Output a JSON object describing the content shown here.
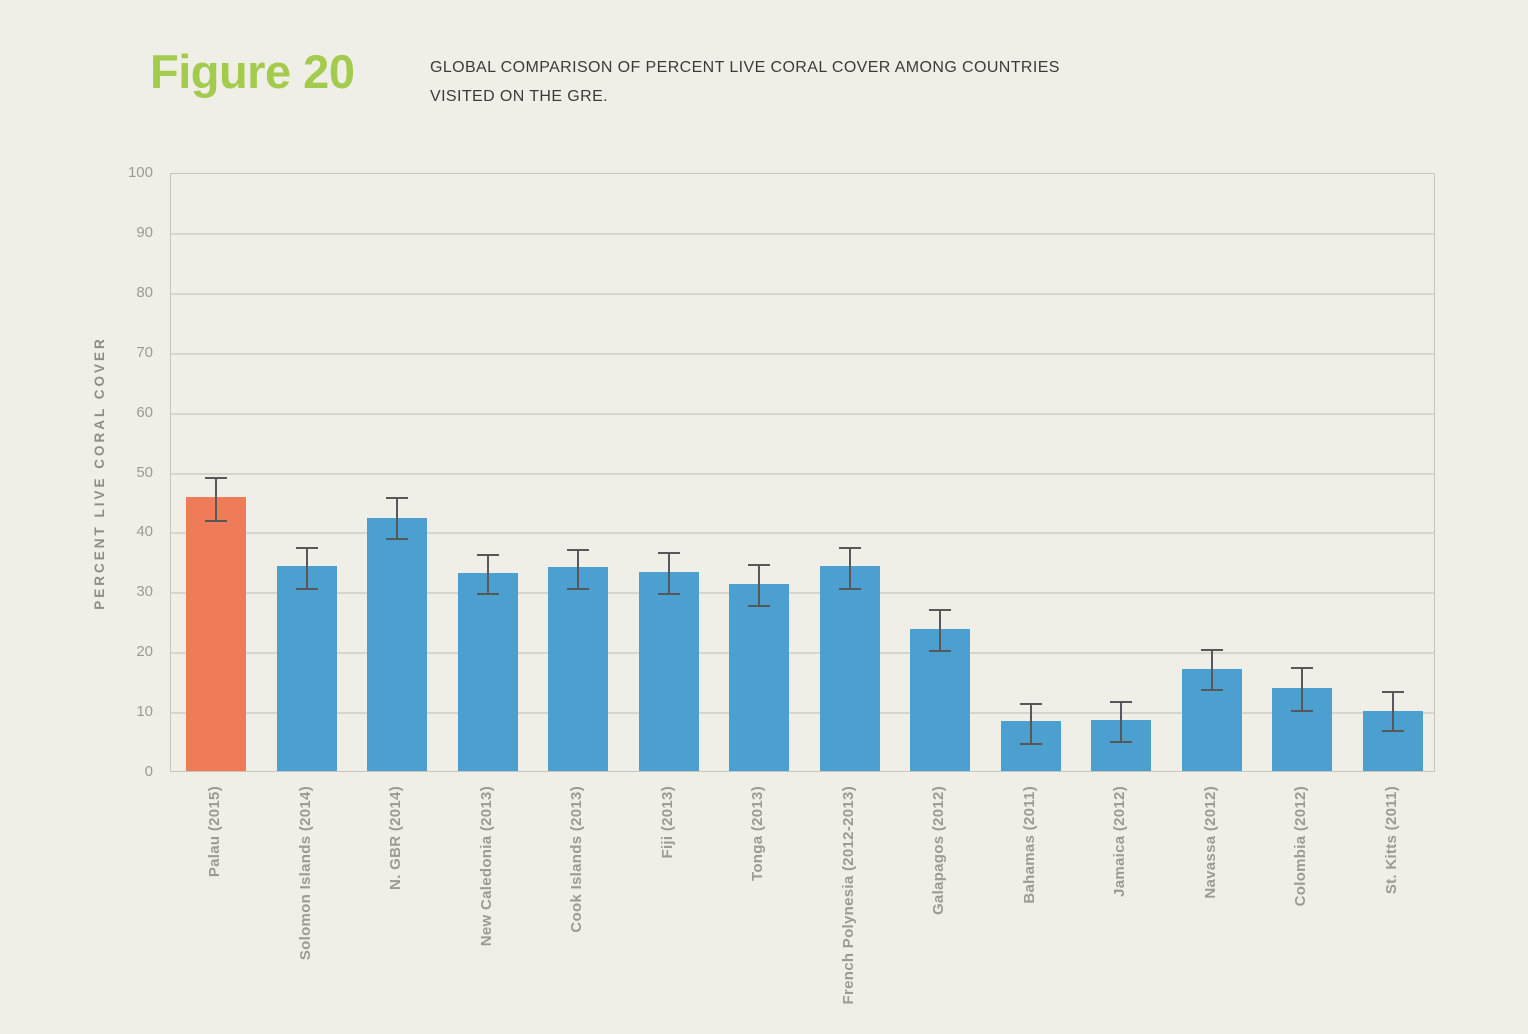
{
  "figure": {
    "label": "Figure 20",
    "caption_lines": [
      "GLOBAL COMPARISON OF PERCENT LIVE CORAL COVER AMONG COUNTRIES",
      "VISITED ON THE GRE."
    ]
  },
  "colors": {
    "background": "#F0EFE7",
    "figure_label_green": "#A3CB4E",
    "caption_text": "#3B3B3B",
    "bar_blue": "#4CA0D0",
    "bar_highlight_orange": "#EE7C58",
    "gridline": "#D6D6CE",
    "plot_border": "#C6C6BE",
    "error_bar": "#58585A",
    "axis_text": "#9B9B94",
    "y_axis_title_text": "#8E8E88"
  },
  "chart_data": {
    "type": "bar",
    "title": "GLOBAL COMPARISON OF PERCENT LIVE CORAL COVER AMONG COUNTRIES VISITED ON THE GRE.",
    "xlabel": "",
    "ylabel": "PERCENT LIVE CORAL COVER",
    "ylim": [
      0,
      100
    ],
    "ytick_step": 10,
    "grid": true,
    "legend_position": "none",
    "highlight_index": 0,
    "highlight_note": "first bar (Palau) highlighted orange, all others blue; black error bars on every bar",
    "categories": [
      "Palau (2015)",
      "Solomon Islands (2014)",
      "N. GBR (2014)",
      "New Caledonia (2013)",
      "Cook Islands (2013)",
      "Fiji (2013)",
      "Tonga (2013)",
      "French Polynesia (2012-2013)",
      "Galapagos (2012)",
      "Bahamas (2011)",
      "Jamaica (2012)",
      "Navassa (2012)",
      "Colombia (2012)",
      "St. Kitts (2011)"
    ],
    "values": [
      45.8,
      34.3,
      42.3,
      33.0,
      34.1,
      33.2,
      31.2,
      34.3,
      23.7,
      8.3,
      8.6,
      17.0,
      13.9,
      10.1
    ],
    "error_low": [
      42.1,
      30.7,
      39.1,
      29.9,
      30.7,
      29.9,
      27.8,
      30.8,
      20.3,
      4.9,
      5.2,
      13.8,
      10.4,
      7.0
    ],
    "error_high": [
      49.2,
      37.6,
      45.9,
      36.4,
      37.3,
      36.7,
      34.8,
      37.5,
      27.2,
      11.5,
      11.9,
      20.6,
      17.5,
      13.6
    ]
  }
}
